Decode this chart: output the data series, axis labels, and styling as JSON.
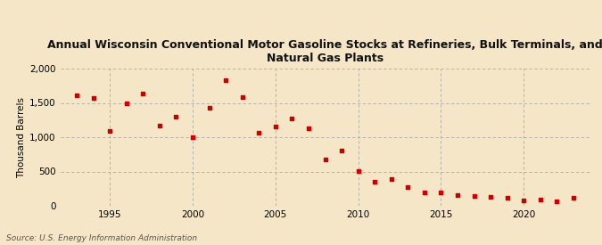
{
  "title": "Annual Wisconsin Conventional Motor Gasoline Stocks at Refineries, Bulk Terminals, and\nNatural Gas Plants",
  "ylabel": "Thousand Barrels",
  "source": "Source: U.S. Energy Information Administration",
  "background_color": "#f5e6c8",
  "plot_background_color": "#fdf6e3",
  "grid_color": "#aaaaaa",
  "point_color": "#cc0000",
  "years": [
    1993,
    1994,
    1995,
    1996,
    1997,
    1998,
    1999,
    2000,
    2001,
    2002,
    2003,
    2004,
    2005,
    2006,
    2007,
    2008,
    2009,
    2010,
    2011,
    2012,
    2013,
    2014,
    2015,
    2016,
    2017,
    2018,
    2019,
    2020,
    2021,
    2022,
    2023
  ],
  "values": [
    1610,
    1570,
    1090,
    1500,
    1640,
    1170,
    1300,
    1000,
    1430,
    1830,
    1590,
    1060,
    1150,
    1270,
    1130,
    680,
    800,
    510,
    350,
    390,
    270,
    200,
    200,
    160,
    140,
    130,
    120,
    80,
    90,
    60,
    115
  ],
  "ylim": [
    0,
    2000
  ],
  "yticks": [
    0,
    500,
    1000,
    1500,
    2000
  ],
  "xticks": [
    1995,
    2000,
    2005,
    2010,
    2015,
    2020
  ],
  "xlim": [
    1992,
    2024
  ]
}
